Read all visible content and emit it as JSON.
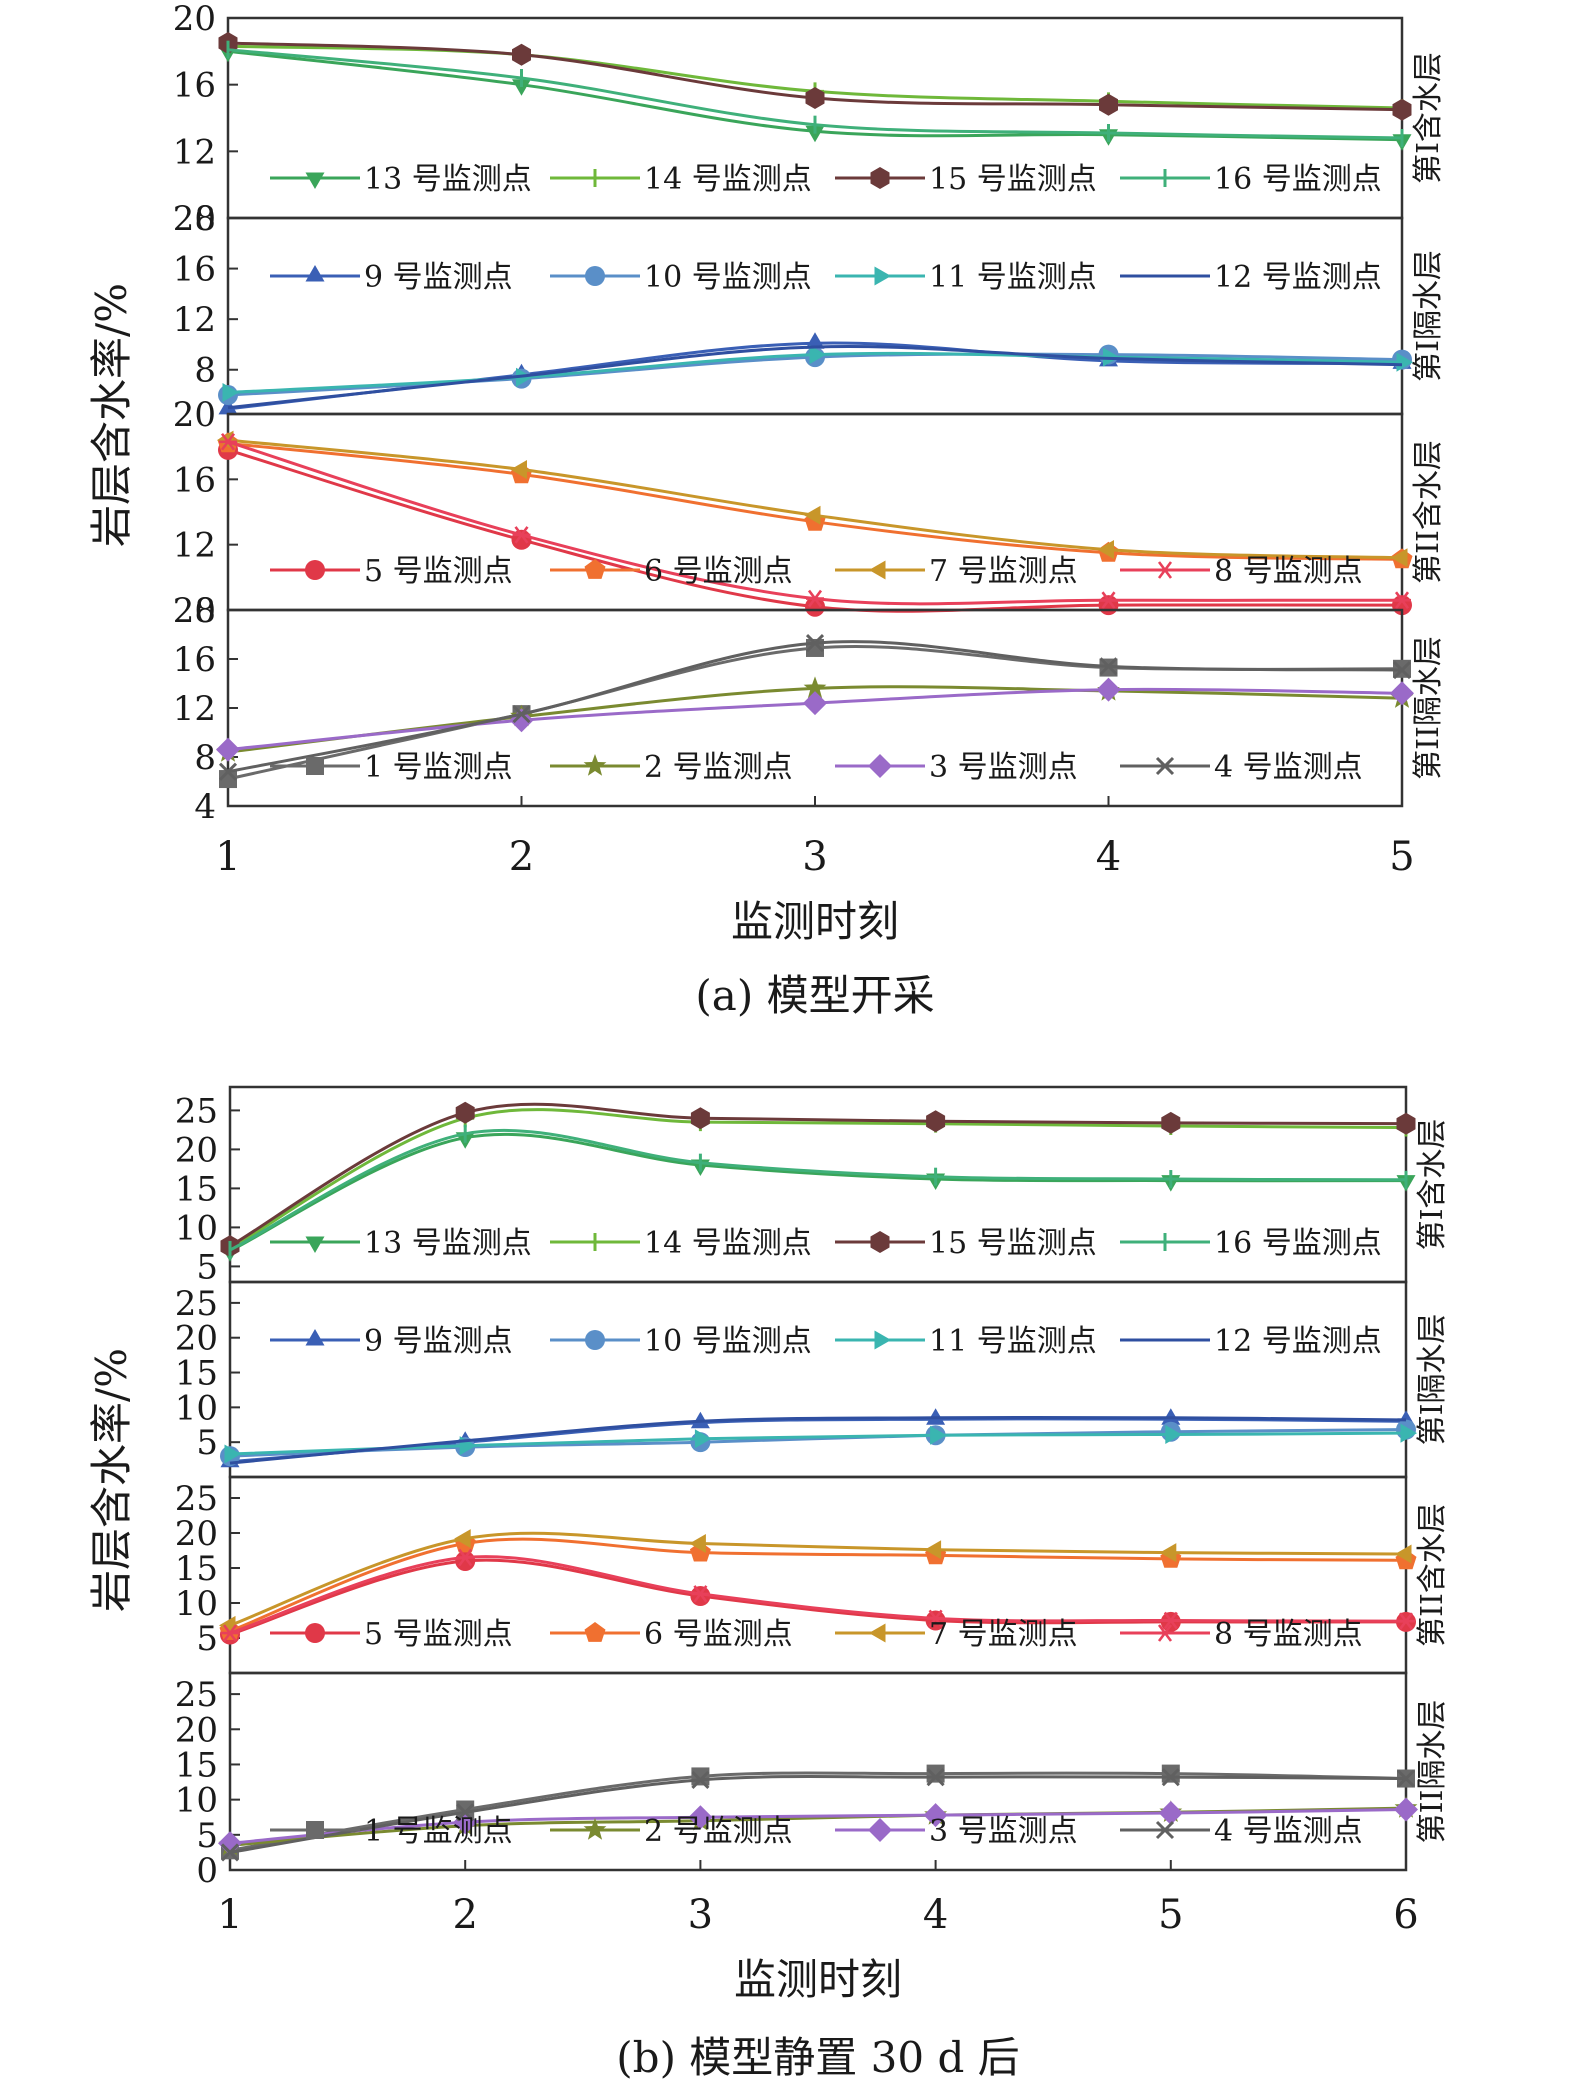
{
  "figure": {
    "ylabel": "岩层含水率/%",
    "xlabel": "监测时刻"
  },
  "chart_data": [
    {
      "type": "line",
      "caption": "(a) 模型开采",
      "xlabel": "监测时刻",
      "ylabel": "岩层含水率/%",
      "x": [
        1,
        2,
        3,
        4,
        5
      ],
      "xlim": [
        1,
        5
      ],
      "grid": false,
      "panels": [
        {
          "label": "第I含水层",
          "ylim": [
            8,
            20
          ],
          "yticks": [
            8,
            12,
            16,
            20
          ],
          "legend_position": "bottom",
          "series": [
            {
              "name": "13 号监测点",
              "color": "#3aa55a",
              "marker": "triangle-down",
              "values": [
                18.0,
                16.0,
                13.2,
                13.0,
                12.7
              ]
            },
            {
              "name": "14 号监测点",
              "color": "#6fb83a",
              "marker": "plus",
              "values": [
                18.3,
                17.8,
                15.6,
                15.0,
                14.6
              ]
            },
            {
              "name": "15 号监测点",
              "color": "#6b3a3a",
              "marker": "hexagon",
              "values": [
                18.5,
                17.8,
                15.2,
                14.8,
                14.5
              ]
            },
            {
              "name": "16 号监测点",
              "color": "#3fb07a",
              "marker": "vline",
              "values": [
                18.1,
                16.4,
                13.6,
                13.1,
                12.8
              ]
            }
          ]
        },
        {
          "label": "第I隔水层",
          "ylim": [
            4.5,
            20
          ],
          "yticks": [
            8,
            12,
            16,
            20
          ],
          "legend_position": "top",
          "series": [
            {
              "name": "9 号监测点",
              "color": "#3a5fb5",
              "marker": "triangle-up",
              "values": [
                4.9,
                7.6,
                10.1,
                8.7,
                8.5
              ]
            },
            {
              "name": "10 号监测点",
              "color": "#5a8fc8",
              "marker": "circle",
              "values": [
                6.0,
                7.3,
                9.0,
                9.2,
                8.8
              ]
            },
            {
              "name": "11 号监测点",
              "color": "#3ab5b0",
              "marker": "triangle-right",
              "values": [
                6.2,
                7.4,
                9.2,
                9.0,
                8.6
              ]
            },
            {
              "name": "12 号监测点",
              "color": "#2f4fa0",
              "marker": "none",
              "values": [
                5.0,
                7.5,
                9.8,
                8.9,
                8.4
              ]
            }
          ]
        },
        {
          "label": "第II含水层",
          "ylim": [
            8,
            20
          ],
          "yticks": [
            8,
            12,
            16,
            20
          ],
          "legend_position": "bottom",
          "series": [
            {
              "name": "5 号监测点",
              "color": "#e03848",
              "marker": "circle",
              "values": [
                17.8,
                12.3,
                8.2,
                8.3,
                8.3
              ]
            },
            {
              "name": "6 号监测点",
              "color": "#f07030",
              "marker": "pentagon",
              "values": [
                18.2,
                16.3,
                13.4,
                11.5,
                11.1
              ]
            },
            {
              "name": "7 号监测点",
              "color": "#c8962a",
              "marker": "triangle-left",
              "values": [
                18.4,
                16.6,
                13.8,
                11.7,
                11.2
              ]
            },
            {
              "name": "8 号监测点",
              "color": "#e8405a",
              "marker": "asterisk",
              "values": [
                18.3,
                12.6,
                8.7,
                8.6,
                8.6
              ]
            }
          ]
        },
        {
          "label": "第II隔水层",
          "ylim": [
            4,
            20
          ],
          "yticks": [
            4,
            8,
            12,
            16,
            20
          ],
          "legend_position": "bottom",
          "series": [
            {
              "name": "1 号监测点",
              "color": "#6a6a6a",
              "marker": "square",
              "values": [
                6.2,
                11.5,
                16.9,
                15.3,
                15.2
              ]
            },
            {
              "name": "2 号监测点",
              "color": "#7a8a30",
              "marker": "star",
              "values": [
                8.4,
                11.3,
                13.6,
                13.4,
                12.8
              ]
            },
            {
              "name": "3 号监测点",
              "color": "#9a6ac8",
              "marker": "diamond",
              "values": [
                8.6,
                11.0,
                12.4,
                13.5,
                13.2
              ]
            },
            {
              "name": "4 号监测点",
              "color": "#606060",
              "marker": "x",
              "values": [
                6.8,
                11.5,
                17.3,
                15.4,
                15.1
              ]
            }
          ]
        }
      ]
    },
    {
      "type": "line",
      "caption": "(b) 模型静置 30 d 后",
      "xlabel": "监测时刻",
      "ylabel": "岩层含水率/%",
      "x": [
        1,
        2,
        3,
        4,
        5,
        6
      ],
      "xlim": [
        1,
        6
      ],
      "grid": false,
      "panels": [
        {
          "label": "第I含水层",
          "ylim": [
            3,
            28
          ],
          "yticks": [
            5,
            10,
            15,
            20,
            25
          ],
          "legend_position": "bottom",
          "series": [
            {
              "name": "13 号监测点",
              "color": "#3aa55a",
              "marker": "triangle-down",
              "values": [
                7.0,
                21.5,
                18.0,
                16.2,
                16.0,
                16.0
              ]
            },
            {
              "name": "14 号监测点",
              "color": "#6fb83a",
              "marker": "plus",
              "values": [
                7.3,
                24.0,
                23.5,
                23.3,
                23.0,
                22.8
              ]
            },
            {
              "name": "15 号监测点",
              "color": "#6b3a3a",
              "marker": "hexagon",
              "values": [
                7.6,
                24.7,
                24.0,
                23.6,
                23.4,
                23.3
              ]
            },
            {
              "name": "16 号监测点",
              "color": "#3fb07a",
              "marker": "vline",
              "values": [
                7.1,
                22.0,
                18.3,
                16.5,
                16.2,
                16.1
              ]
            }
          ]
        },
        {
          "label": "第I隔水层",
          "ylim": [
            0,
            28
          ],
          "yticks": [
            5,
            10,
            15,
            20,
            25
          ],
          "legend_position": "top",
          "series": [
            {
              "name": "9 号监测点",
              "color": "#3a5fb5",
              "marker": "triangle-up",
              "values": [
                2.2,
                5.0,
                7.8,
                8.3,
                8.3,
                8.0
              ]
            },
            {
              "name": "10 号监测点",
              "color": "#5a8fc8",
              "marker": "circle",
              "values": [
                3.0,
                4.3,
                5.0,
                6.0,
                6.5,
                6.8
              ]
            },
            {
              "name": "11 号监测点",
              "color": "#3ab5b0",
              "marker": "triangle-right",
              "values": [
                3.3,
                4.5,
                5.5,
                6.0,
                6.1,
                6.3
              ]
            },
            {
              "name": "12 号监测点",
              "color": "#2f4fa0",
              "marker": "none",
              "values": [
                2.0,
                5.2,
                8.0,
                8.5,
                8.5,
                8.2
              ]
            }
          ]
        },
        {
          "label": "第II含水层",
          "ylim": [
            0,
            28
          ],
          "yticks": [
            5,
            10,
            15,
            20,
            25
          ],
          "legend_position": "bottom",
          "series": [
            {
              "name": "5 号监测点",
              "color": "#e03848",
              "marker": "circle",
              "values": [
                5.5,
                16.0,
                11.0,
                7.5,
                7.3,
                7.3
              ]
            },
            {
              "name": "6 号监测点",
              "color": "#f07030",
              "marker": "pentagon",
              "values": [
                6.0,
                18.5,
                17.2,
                16.8,
                16.3,
                16.1
              ]
            },
            {
              "name": "7 号监测点",
              "color": "#c8962a",
              "marker": "triangle-left",
              "values": [
                6.8,
                19.2,
                18.5,
                17.6,
                17.2,
                17.0
              ]
            },
            {
              "name": "8 号监测点",
              "color": "#e8405a",
              "marker": "asterisk",
              "values": [
                5.7,
                16.5,
                11.3,
                7.8,
                7.5,
                7.4
              ]
            }
          ]
        },
        {
          "label": "第II隔水层",
          "ylim": [
            0,
            28
          ],
          "yticks": [
            0,
            5,
            10,
            15,
            20,
            25
          ],
          "legend_position": "bottom",
          "series": [
            {
              "name": "1 号监测点",
              "color": "#6a6a6a",
              "marker": "square",
              "values": [
                2.8,
                8.6,
                13.3,
                13.7,
                13.7,
                13.0
              ]
            },
            {
              "name": "2 号监测点",
              "color": "#7a8a30",
              "marker": "star",
              "values": [
                3.5,
                6.3,
                7.0,
                7.8,
                8.2,
                8.8
              ]
            },
            {
              "name": "3 号监测点",
              "color": "#9a6ac8",
              "marker": "diamond",
              "values": [
                3.8,
                6.8,
                7.5,
                7.8,
                8.1,
                8.6
              ]
            },
            {
              "name": "4 号监测点",
              "color": "#606060",
              "marker": "x",
              "values": [
                2.5,
                8.2,
                12.8,
                13.2,
                13.2,
                13.0
              ]
            }
          ]
        }
      ]
    }
  ]
}
